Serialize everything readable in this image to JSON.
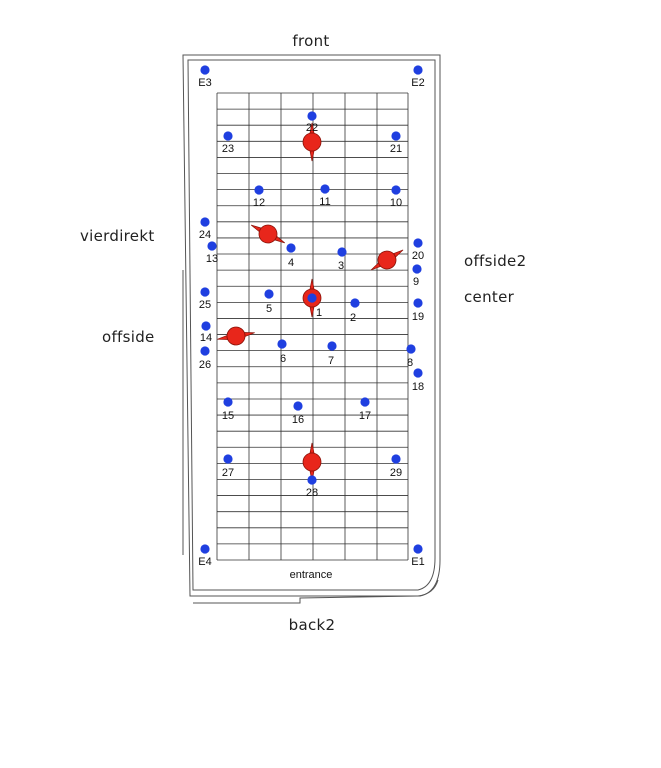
{
  "labels": {
    "front": "front",
    "back": "back2",
    "entrance": "entrance",
    "left_top": "vierdirekt",
    "left_bottom": "offside",
    "right_top": "offside2",
    "right_bottom": "center"
  },
  "colors": {
    "point": "#1f3fe0",
    "speaker": "#e8261b",
    "grid": "#333333",
    "outline": "#555555"
  },
  "points": [
    "E3",
    "E2",
    "22",
    "23",
    "21",
    "12",
    "11",
    "10",
    "24",
    "13",
    "4",
    "3",
    "20",
    "9",
    "25",
    "5",
    "1",
    "2",
    "19",
    "14",
    "26",
    "6",
    "7",
    "8",
    "18",
    "15",
    "16",
    "17",
    "27",
    "28",
    "29",
    "E4",
    "E1"
  ],
  "speakers": [
    "speaker-top",
    "speaker-left-upper",
    "speaker-right",
    "speaker-center",
    "speaker-left-lower",
    "speaker-bottom"
  ]
}
